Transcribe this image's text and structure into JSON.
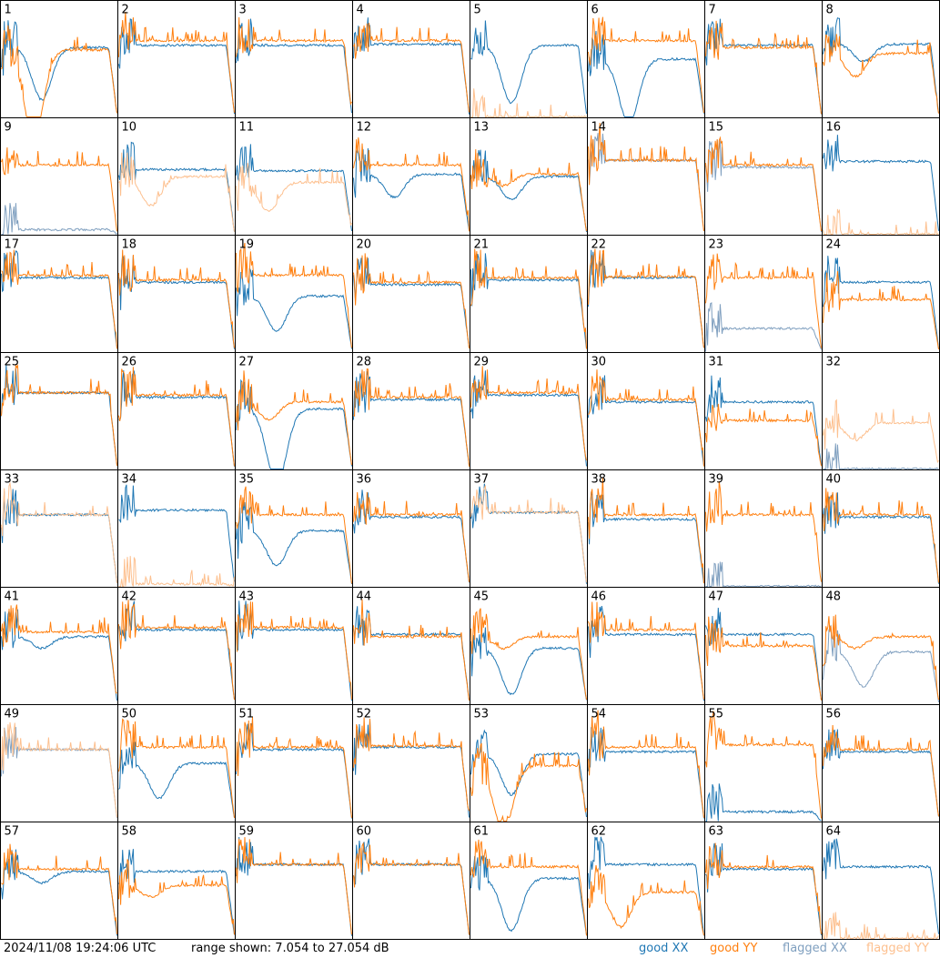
{
  "footer": {
    "timestamp": "2024/11/08 19:24:06 UTC",
    "range_text": "range shown: 7.054 to 27.054 dB"
  },
  "legend": [
    {
      "key": "good_xx",
      "label": "good XX",
      "color": "#1f77b4"
    },
    {
      "key": "good_yy",
      "label": "good YY",
      "color": "#ff7f0e"
    },
    {
      "key": "flagged_xx",
      "label": "flagged XX",
      "color": "#7f9fbf"
    },
    {
      "key": "flagged_yy",
      "label": "flagged YY",
      "color": "#fdc08f"
    }
  ],
  "chart_data": {
    "type": "line",
    "grid_rows": 8,
    "grid_cols": 8,
    "ylim_db": [
      7.054,
      27.054
    ],
    "series_names": [
      "good XX",
      "good YY",
      "flagged XX",
      "flagged YY"
    ],
    "panels": [
      {
        "label": "1",
        "xx": {
          "state": "good",
          "level": 0.6,
          "dip": 0.45
        },
        "yy": {
          "state": "good",
          "level": 0.58,
          "dip": 0.75
        }
      },
      {
        "label": "2",
        "xx": {
          "state": "good",
          "level": 0.62,
          "dip": 0
        },
        "yy": {
          "state": "good",
          "level": 0.66,
          "dip": 0
        }
      },
      {
        "label": "3",
        "xx": {
          "state": "good",
          "level": 0.62,
          "dip": 0
        },
        "yy": {
          "state": "good",
          "level": 0.66,
          "dip": 0
        }
      },
      {
        "label": "4",
        "xx": {
          "state": "good",
          "level": 0.63,
          "dip": 0
        },
        "yy": {
          "state": "good",
          "level": 0.66,
          "dip": 0
        }
      },
      {
        "label": "5",
        "xx": {
          "state": "good",
          "level": 0.62,
          "dip": 0.5
        },
        "yy": {
          "state": "flagged",
          "level": 0,
          "dip": 0
        }
      },
      {
        "label": "6",
        "xx": {
          "state": "good",
          "level": 0.5,
          "dip": 0.55
        },
        "yy": {
          "state": "good",
          "level": 0.66,
          "dip": 0
        }
      },
      {
        "label": "7",
        "xx": {
          "state": "good",
          "level": 0.62,
          "dip": 0
        },
        "yy": {
          "state": "good",
          "level": 0.6,
          "dip": 0
        }
      },
      {
        "label": "8",
        "xx": {
          "state": "good",
          "level": 0.63,
          "dip": 0.15
        },
        "yy": {
          "state": "good",
          "level": 0.55,
          "dip": 0.2
        }
      },
      {
        "label": "9",
        "xx": {
          "state": "flagged",
          "level": 0.04,
          "dip": 0
        },
        "yy": {
          "state": "good",
          "level": 0.6,
          "dip": 0
        }
      },
      {
        "label": "10",
        "xx": {
          "state": "good",
          "level": 0.56,
          "dip": 0
        },
        "yy": {
          "state": "flagged",
          "level": 0.5,
          "dip": 0.25
        }
      },
      {
        "label": "11",
        "xx": {
          "state": "good",
          "level": 0.55,
          "dip": 0
        },
        "yy": {
          "state": "flagged",
          "level": 0.45,
          "dip": 0.25
        }
      },
      {
        "label": "12",
        "xx": {
          "state": "good",
          "level": 0.52,
          "dip": 0.2
        },
        "yy": {
          "state": "good",
          "level": 0.6,
          "dip": 0
        }
      },
      {
        "label": "13",
        "xx": {
          "state": "good",
          "level": 0.5,
          "dip": 0.2
        },
        "yy": {
          "state": "good",
          "level": 0.52,
          "dip": 0.1
        }
      },
      {
        "label": "14",
        "xx": {
          "state": "flagged",
          "level": 0.64,
          "dip": 0
        },
        "yy": {
          "state": "good",
          "level": 0.64,
          "dip": 0
        }
      },
      {
        "label": "15",
        "xx": {
          "state": "flagged",
          "level": 0.58,
          "dip": 0
        },
        "yy": {
          "state": "good",
          "level": 0.6,
          "dip": 0
        }
      },
      {
        "label": "16",
        "xx": {
          "state": "good",
          "level": 0.63,
          "dip": 0
        },
        "yy": {
          "state": "flagged",
          "level": 0,
          "dip": 0
        }
      },
      {
        "label": "17",
        "xx": {
          "state": "good",
          "level": 0.64,
          "dip": 0
        },
        "yy": {
          "state": "good",
          "level": 0.66,
          "dip": 0
        }
      },
      {
        "label": "18",
        "xx": {
          "state": "good",
          "level": 0.6,
          "dip": 0
        },
        "yy": {
          "state": "good",
          "level": 0.62,
          "dip": 0
        }
      },
      {
        "label": "19",
        "xx": {
          "state": "good",
          "level": 0.48,
          "dip": 0.3
        },
        "yy": {
          "state": "good",
          "level": 0.66,
          "dip": 0
        }
      },
      {
        "label": "20",
        "xx": {
          "state": "good",
          "level": 0.58,
          "dip": 0
        },
        "yy": {
          "state": "good",
          "level": 0.6,
          "dip": 0
        }
      },
      {
        "label": "21",
        "xx": {
          "state": "good",
          "level": 0.62,
          "dip": 0
        },
        "yy": {
          "state": "good",
          "level": 0.64,
          "dip": 0
        }
      },
      {
        "label": "22",
        "xx": {
          "state": "good",
          "level": 0.64,
          "dip": 0
        },
        "yy": {
          "state": "good",
          "level": 0.65,
          "dip": 0
        }
      },
      {
        "label": "23",
        "xx": {
          "state": "flagged",
          "level": 0.2,
          "dip": 0
        },
        "yy": {
          "state": "good",
          "level": 0.64,
          "dip": 0
        }
      },
      {
        "label": "24",
        "xx": {
          "state": "good",
          "level": 0.6,
          "dip": 0
        },
        "yy": {
          "state": "good",
          "level": 0.45,
          "dip": 0
        }
      },
      {
        "label": "25",
        "xx": {
          "state": "good",
          "level": 0.66,
          "dip": 0
        },
        "yy": {
          "state": "good",
          "level": 0.66,
          "dip": 0
        }
      },
      {
        "label": "26",
        "xx": {
          "state": "good",
          "level": 0.62,
          "dip": 0
        },
        "yy": {
          "state": "good",
          "level": 0.64,
          "dip": 0
        }
      },
      {
        "label": "27",
        "xx": {
          "state": "good",
          "level": 0.52,
          "dip": 0.65
        },
        "yy": {
          "state": "good",
          "level": 0.58,
          "dip": 0.15
        }
      },
      {
        "label": "28",
        "xx": {
          "state": "good",
          "level": 0.6,
          "dip": 0
        },
        "yy": {
          "state": "good",
          "level": 0.62,
          "dip": 0
        }
      },
      {
        "label": "29",
        "xx": {
          "state": "good",
          "level": 0.64,
          "dip": 0
        },
        "yy": {
          "state": "good",
          "level": 0.66,
          "dip": 0
        }
      },
      {
        "label": "30",
        "xx": {
          "state": "good",
          "level": 0.58,
          "dip": 0
        },
        "yy": {
          "state": "good",
          "level": 0.6,
          "dip": 0
        }
      },
      {
        "label": "31",
        "xx": {
          "state": "good",
          "level": 0.58,
          "dip": 0
        },
        "yy": {
          "state": "good",
          "level": 0.42,
          "dip": 0
        }
      },
      {
        "label": "32",
        "xx": {
          "state": "flagged",
          "level": 0,
          "dip": 0
        },
        "yy": {
          "state": "flagged",
          "level": 0.4,
          "dip": 0.15
        }
      },
      {
        "label": "33",
        "xx": {
          "state": "good",
          "level": 0.62,
          "dip": 0
        },
        "yy": {
          "state": "flagged",
          "level": 0.62,
          "dip": 0
        }
      },
      {
        "label": "34",
        "xx": {
          "state": "good",
          "level": 0.66,
          "dip": 0
        },
        "yy": {
          "state": "flagged",
          "level": 0.02,
          "dip": 0
        }
      },
      {
        "label": "35",
        "xx": {
          "state": "good",
          "level": 0.48,
          "dip": 0.3
        },
        "yy": {
          "state": "good",
          "level": 0.62,
          "dip": 0
        }
      },
      {
        "label": "36",
        "xx": {
          "state": "good",
          "level": 0.6,
          "dip": 0
        },
        "yy": {
          "state": "good",
          "level": 0.62,
          "dip": 0
        }
      },
      {
        "label": "37",
        "xx": {
          "state": "good",
          "level": 0.64,
          "dip": 0
        },
        "yy": {
          "state": "flagged",
          "level": 0.64,
          "dip": 0
        }
      },
      {
        "label": "38",
        "xx": {
          "state": "good",
          "level": 0.58,
          "dip": 0
        },
        "yy": {
          "state": "good",
          "level": 0.62,
          "dip": 0
        }
      },
      {
        "label": "39",
        "xx": {
          "state": "flagged",
          "level": 0,
          "dip": 0
        },
        "yy": {
          "state": "good",
          "level": 0.62,
          "dip": 0
        }
      },
      {
        "label": "40",
        "xx": {
          "state": "good",
          "level": 0.6,
          "dip": 0
        },
        "yy": {
          "state": "good",
          "level": 0.62,
          "dip": 0
        }
      },
      {
        "label": "41",
        "xx": {
          "state": "good",
          "level": 0.58,
          "dip": 0.1
        },
        "yy": {
          "state": "good",
          "level": 0.62,
          "dip": 0
        }
      },
      {
        "label": "42",
        "xx": {
          "state": "good",
          "level": 0.64,
          "dip": 0
        },
        "yy": {
          "state": "good",
          "level": 0.66,
          "dip": 0
        }
      },
      {
        "label": "43",
        "xx": {
          "state": "good",
          "level": 0.64,
          "dip": 0
        },
        "yy": {
          "state": "good",
          "level": 0.66,
          "dip": 0
        }
      },
      {
        "label": "44",
        "xx": {
          "state": "good",
          "level": 0.6,
          "dip": 0
        },
        "yy": {
          "state": "good",
          "level": 0.58,
          "dip": 0
        }
      },
      {
        "label": "45",
        "xx": {
          "state": "good",
          "level": 0.48,
          "dip": 0.4
        },
        "yy": {
          "state": "good",
          "level": 0.58,
          "dip": 0.1
        }
      },
      {
        "label": "46",
        "xx": {
          "state": "good",
          "level": 0.6,
          "dip": 0
        },
        "yy": {
          "state": "good",
          "level": 0.64,
          "dip": 0
        }
      },
      {
        "label": "47",
        "xx": {
          "state": "good",
          "level": 0.6,
          "dip": 0
        },
        "yy": {
          "state": "good",
          "level": 0.5,
          "dip": 0
        }
      },
      {
        "label": "48",
        "xx": {
          "state": "flagged",
          "level": 0.45,
          "dip": 0.3
        },
        "yy": {
          "state": "good",
          "level": 0.58,
          "dip": 0.1
        }
      },
      {
        "label": "49",
        "xx": {
          "state": "flagged",
          "level": 0.62,
          "dip": 0
        },
        "yy": {
          "state": "flagged",
          "level": 0.62,
          "dip": 0
        }
      },
      {
        "label": "50",
        "xx": {
          "state": "good",
          "level": 0.5,
          "dip": 0.3
        },
        "yy": {
          "state": "good",
          "level": 0.64,
          "dip": 0
        }
      },
      {
        "label": "51",
        "xx": {
          "state": "good",
          "level": 0.62,
          "dip": 0
        },
        "yy": {
          "state": "good",
          "level": 0.64,
          "dip": 0
        }
      },
      {
        "label": "52",
        "xx": {
          "state": "good",
          "level": 0.64,
          "dip": 0
        },
        "yy": {
          "state": "good",
          "level": 0.65,
          "dip": 0
        }
      },
      {
        "label": "53",
        "xx": {
          "state": "good",
          "level": 0.58,
          "dip": 0.35
        },
        "yy": {
          "state": "good",
          "level": 0.48,
          "dip": 0.55
        }
      },
      {
        "label": "54",
        "xx": {
          "state": "good",
          "level": 0.6,
          "dip": 0
        },
        "yy": {
          "state": "good",
          "level": 0.64,
          "dip": 0
        }
      },
      {
        "label": "55",
        "xx": {
          "state": "good",
          "level": 0.08,
          "dip": 0
        },
        "yy": {
          "state": "good",
          "level": 0.66,
          "dip": 0
        }
      },
      {
        "label": "56",
        "xx": {
          "state": "good",
          "level": 0.6,
          "dip": 0
        },
        "yy": {
          "state": "good",
          "level": 0.62,
          "dip": 0
        }
      },
      {
        "label": "57",
        "xx": {
          "state": "good",
          "level": 0.58,
          "dip": 0.1
        },
        "yy": {
          "state": "good",
          "level": 0.6,
          "dip": 0
        }
      },
      {
        "label": "58",
        "xx": {
          "state": "good",
          "level": 0.58,
          "dip": 0
        },
        "yy": {
          "state": "good",
          "level": 0.46,
          "dip": 0.1
        }
      },
      {
        "label": "59",
        "xx": {
          "state": "good",
          "level": 0.64,
          "dip": 0
        },
        "yy": {
          "state": "good",
          "level": 0.64,
          "dip": 0
        }
      },
      {
        "label": "60",
        "xx": {
          "state": "good",
          "level": 0.64,
          "dip": 0
        },
        "yy": {
          "state": "good",
          "level": 0.64,
          "dip": 0
        }
      },
      {
        "label": "61",
        "xx": {
          "state": "good",
          "level": 0.52,
          "dip": 0.45
        },
        "yy": {
          "state": "good",
          "level": 0.62,
          "dip": 0
        }
      },
      {
        "label": "62",
        "xx": {
          "state": "good",
          "level": 0.64,
          "dip": 0
        },
        "yy": {
          "state": "good",
          "level": 0.4,
          "dip": 0.3
        }
      },
      {
        "label": "63",
        "xx": {
          "state": "good",
          "level": 0.6,
          "dip": 0
        },
        "yy": {
          "state": "good",
          "level": 0.62,
          "dip": 0
        }
      },
      {
        "label": "64",
        "xx": {
          "state": "good",
          "level": 0.62,
          "dip": 0
        },
        "yy": {
          "state": "flagged",
          "level": 0,
          "dip": 0
        }
      }
    ]
  }
}
